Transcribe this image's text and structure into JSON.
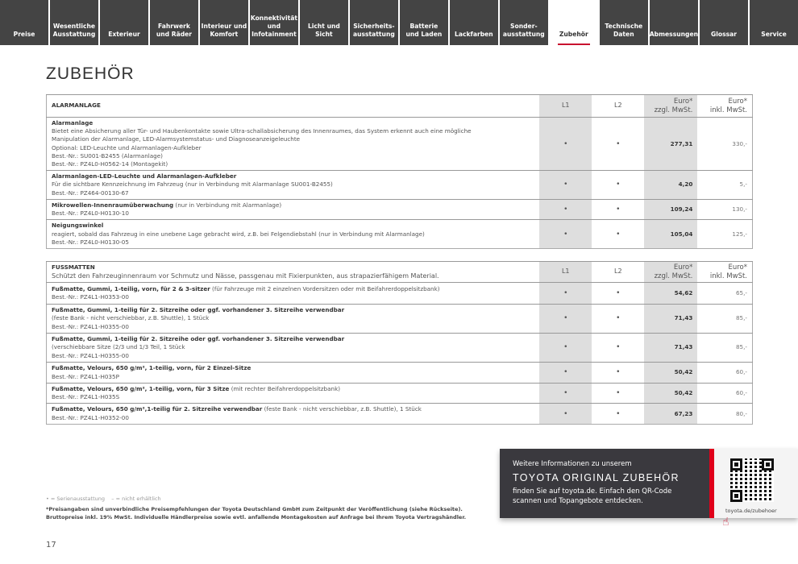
{
  "nav": {
    "tabs": [
      "Preise",
      "Wesentliche\nAusstattung",
      "Exterieur",
      "Fahrwerk\nund Räder",
      "Interieur und\nKomfort",
      "Konnektivität\nund\nInfotainment",
      "Licht und Sicht",
      "Sicherheits-\nausstattung",
      "Batterie\nund Laden",
      "Lackfarben",
      "Sonder-\nausstattung",
      "Zubehör",
      "Technische\nDaten",
      "Abmessungen",
      "Glossar",
      "Service"
    ],
    "active": "Zubehör",
    "accent": "#c8102e"
  },
  "page_title": "ZUBEHÖR",
  "columns": {
    "l1": "L1",
    "l2": "L2",
    "net": "Euro*\nzzgl. MwSt.",
    "gross": "Euro*\ninkl. MwSt."
  },
  "alarm": {
    "category": "ALARMANLAGE",
    "rows": [
      {
        "title": "Alarmanlage",
        "note": "",
        "lines": [
          "Bietet eine Absicherung aller Tür- und Haubenkontakte sowie Ultra-schallabsicherung des Innenraumes, das System erkennt auch eine mögliche",
          "Manipulation der Alarmanlage, LED-Alarmsystemstatus- und Diagnoseanzeigeleuchte",
          "Optional: LED-Leuchte und Alarmanlagen-Aufkleber",
          "Best.-Nr.: SU001-B2455 (Alarmanlage)",
          "Best.-Nr.: PZ4L0-H0562-14 (Montagekit)"
        ],
        "l1": "•",
        "l2": "•",
        "net": "277,31",
        "gross": "330,-"
      },
      {
        "title": "Alarmanlagen-LED-Leuchte und Alarmanlagen-Aufkleber",
        "note": "",
        "lines": [
          "Für die sichtbare Kennzeichnung im Fahrzeug (nur in Verbindung mit Alarmanlage SU001-B2455)",
          "Best.-Nr.: PZ464-00130-67"
        ],
        "l1": "•",
        "l2": "•",
        "net": "4,20",
        "gross": "5,-"
      },
      {
        "title": "Mikrowellen-Innenraumüberwachung",
        "note": " (nur in Verbindung mit Alarmanlage)",
        "lines": [
          "Best.-Nr.: PZ4L0-H0130-10"
        ],
        "l1": "•",
        "l2": "•",
        "net": "109,24",
        "gross": "130,-"
      },
      {
        "title": "Neigungswinkel",
        "note": "",
        "lines": [
          "reagiert, sobald das Fahrzeug in eine unebene Lage gebracht wird, z.B. bei Felgendiebstahl (nur in Verbindung mit Alarmanlage)",
          "Best.-Nr.: PZ4L0-H0130-05"
        ],
        "l1": "•",
        "l2": "•",
        "net": "105,04",
        "gross": "125,-"
      }
    ]
  },
  "mats": {
    "category": "FUSSMATTEN",
    "description": "Schützt den Fahrzeuginnenraum vor Schmutz und Nässe, passgenau mit Fixierpunkten, aus strapazierfähigem Material.",
    "rows": [
      {
        "title": "Fußmatte, Gummi, 1-teilig, vorn, für 2 & 3-sitzer",
        "note": " (für Fahrzeuge mit 2 einzelnen Vordersitzen oder mit Beifahrerdoppelsitzbank)",
        "lines": [
          "Best.-Nr.: PZ4L1-H0353-00"
        ],
        "l1": "•",
        "l2": "•",
        "net": "54,62",
        "gross": "65,-"
      },
      {
        "title": "Fußmatte, Gummi, 1-teilig für 2. Sitzreihe oder ggf. vorhandener 3. Sitzreihe verwendbar",
        "note": "",
        "lines": [
          "(feste Bank - nicht verschiebbar, z.B. Shuttle), 1 Stück",
          "Best.-Nr.: PZ4L1-H0355-00"
        ],
        "l1": "•",
        "l2": "•",
        "net": "71,43",
        "gross": "85,-"
      },
      {
        "title": "Fußmatte, Gummi, 1-teilig für 2. Sitzreihe oder ggf. vorhandener 3. Sitzreihe verwendbar",
        "note": "",
        "lines": [
          "(verschiebbare Sitze (2/3 und 1/3 Teil, 1 Stück",
          "Best.-Nr.: PZ4L1-H0355-00"
        ],
        "l1": "•",
        "l2": "•",
        "net": "71,43",
        "gross": "85,-"
      },
      {
        "title": "Fußmatte, Velours, 650 g/m², 1-teilig, vorn, für 2 Einzel-Sitze",
        "note": "",
        "lines": [
          "Best.-Nr.: PZ4L1-H035P"
        ],
        "l1": "•",
        "l2": "•",
        "net": "50,42",
        "gross": "60,-"
      },
      {
        "title": "Fußmatte, Velours, 650 g/m², 1-teilig, vorn, für 3 Sitze",
        "note": " (mit rechter Beifahrerdoppelsitzbank)",
        "lines": [
          "Best.-Nr.: PZ4L1-H035S"
        ],
        "l1": "•",
        "l2": "•",
        "net": "50,42",
        "gross": "60,-"
      },
      {
        "title": "Fußmatte, Velours, 650 g/m²,1-teilig für 2. Sitzreihe verwendbar",
        "note": " (feste Bank - nicht verschiebbar, z.B. Shuttle), 1 Stück",
        "lines": [
          "Best.-Nr.: PZ4L1-H0352-00"
        ],
        "l1": "•",
        "l2": "•",
        "net": "67,23",
        "gross": "80,-"
      }
    ]
  },
  "footer": {
    "legend": "• = Serienausstattung    – = nicht erhältlich",
    "note1": "*Preisangaben sind unverbindliche Preisempfehlungen der Toyota Deutschland GmbH zum Zeitpunkt der Veröffentlichung (siehe Rückseite).",
    "note2": "Bruttopreise inkl. 19% MwSt. Individuelle Händlerpreise sowie evtl. anfallende Montagekosten auf Anfrage bei Ihrem Toyota Vertragshändler.",
    "page_number": "17"
  },
  "promo": {
    "line1": "Weitere Informationen zu unserem",
    "headline": "TOYOTA ORIGINAL ZUBEHÖR",
    "line3": "finden Sie auf toyota.de. Einfach den QR-Code scannen und Topangebote entdecken.",
    "url": "toyota.de/zubehoer",
    "qr_icon": "qr-code",
    "hand_icon": "pointing-hand"
  }
}
